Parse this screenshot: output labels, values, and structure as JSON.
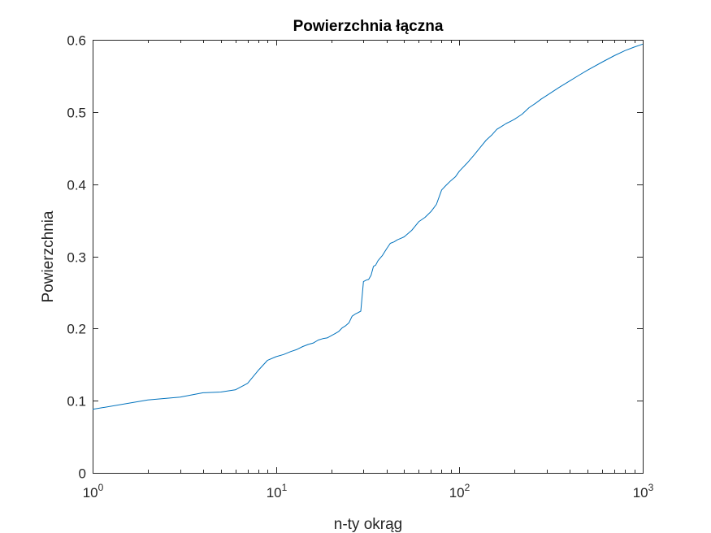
{
  "chart_data": {
    "type": "line",
    "title": "Powierzchnia łączna",
    "xlabel": "n-ty okrąg",
    "ylabel": "Powierzchnia",
    "xscale": "log",
    "xlim": [
      1,
      1000
    ],
    "ylim": [
      0,
      0.6
    ],
    "grid": false,
    "legend": "none",
    "xticks": [
      {
        "value": 1,
        "base": "10",
        "exp": "0"
      },
      {
        "value": 10,
        "base": "10",
        "exp": "1"
      },
      {
        "value": 100,
        "base": "10",
        "exp": "2"
      },
      {
        "value": 1000,
        "base": "10",
        "exp": "3"
      }
    ],
    "yticks": [
      {
        "value": 0,
        "label": "0"
      },
      {
        "value": 0.1,
        "label": "0.1"
      },
      {
        "value": 0.2,
        "label": "0.2"
      },
      {
        "value": 0.3,
        "label": "0.3"
      },
      {
        "value": 0.4,
        "label": "0.4"
      },
      {
        "value": 0.5,
        "label": "0.5"
      },
      {
        "value": 0.6,
        "label": "0.6"
      }
    ],
    "series": [
      {
        "color": "#0072BD",
        "x": [
          1,
          2,
          3,
          4,
          5,
          6,
          7,
          8,
          9,
          10,
          11,
          12,
          13,
          14,
          15,
          16,
          17,
          18,
          19,
          20,
          21,
          22,
          23,
          24,
          25,
          26,
          27,
          28,
          29,
          30,
          31,
          32,
          33,
          34,
          35,
          36,
          38,
          40,
          42,
          44,
          46,
          48,
          50,
          55,
          60,
          65,
          70,
          75,
          80,
          85,
          90,
          95,
          100,
          110,
          120,
          130,
          140,
          150,
          160,
          170,
          180,
          190,
          200,
          220,
          240,
          260,
          280,
          300,
          350,
          400,
          450,
          500,
          600,
          700,
          800,
          900,
          1000
        ],
        "y": [
          0.088,
          0.101,
          0.105,
          0.111,
          0.112,
          0.115,
          0.124,
          0.142,
          0.156,
          0.161,
          0.164,
          0.168,
          0.171,
          0.175,
          0.178,
          0.18,
          0.184,
          0.186,
          0.187,
          0.19,
          0.193,
          0.196,
          0.201,
          0.204,
          0.208,
          0.217,
          0.22,
          0.222,
          0.224,
          0.265,
          0.267,
          0.268,
          0.274,
          0.286,
          0.288,
          0.294,
          0.301,
          0.31,
          0.318,
          0.32,
          0.323,
          0.325,
          0.327,
          0.336,
          0.348,
          0.354,
          0.362,
          0.372,
          0.392,
          0.399,
          0.405,
          0.41,
          0.418,
          0.429,
          0.44,
          0.451,
          0.461,
          0.468,
          0.476,
          0.48,
          0.484,
          0.487,
          0.49,
          0.497,
          0.506,
          0.512,
          0.518,
          0.523,
          0.534,
          0.543,
          0.551,
          0.558,
          0.569,
          0.578,
          0.585,
          0.59,
          0.594
        ]
      }
    ]
  }
}
